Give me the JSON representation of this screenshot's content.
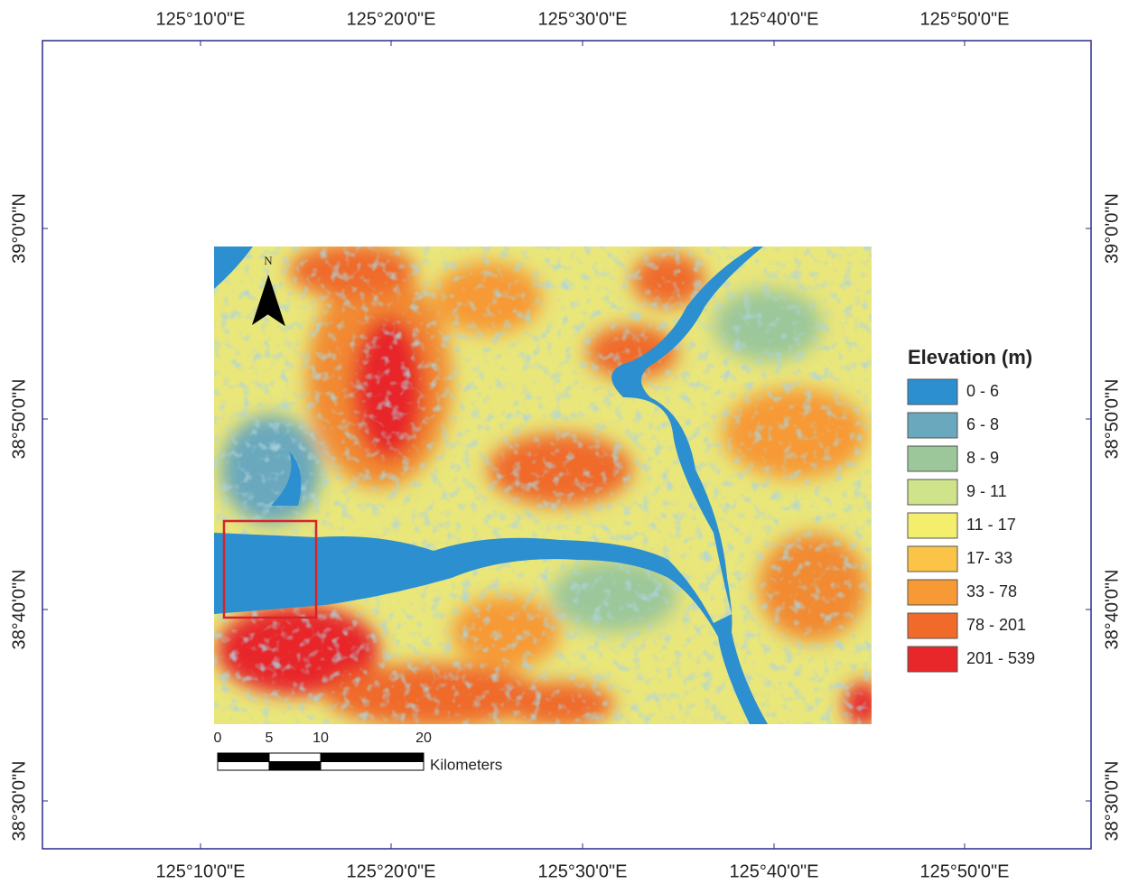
{
  "grid": {
    "top_labels": [
      "125°10'0\"E",
      "125°20'0\"E",
      "125°30'0\"E",
      "125°40'0\"E",
      "125°50'0\"E"
    ],
    "bottom_labels": [
      "125°10'0\"E",
      "125°20'0\"E",
      "125°30'0\"E",
      "125°40'0\"E",
      "125°50'0\"E"
    ],
    "left_labels": [
      "39°0'0\"N",
      "38°50'0\"N",
      "38°40'0\"N",
      "38°30'0\"N"
    ],
    "right_labels": [
      "39°0'0\"N",
      "38°50'0\"N",
      "38°40'0\"N",
      "38°30'0\"N"
    ]
  },
  "north_arrow": {
    "label": "N"
  },
  "legend": {
    "title": "Elevation (m)",
    "items": [
      {
        "label": "0 - 6",
        "color": "#2b8fd0"
      },
      {
        "label": "6 - 8",
        "color": "#6aa8bd"
      },
      {
        "label": "8 - 9",
        "color": "#9cc79a"
      },
      {
        "label": "9 - 11",
        "color": "#cfe38a"
      },
      {
        "label": "11 - 17",
        "color": "#f3ee6c"
      },
      {
        "label": "17- 33",
        "color": "#fbc447"
      },
      {
        "label": "33 - 78",
        "color": "#f79a35"
      },
      {
        "label": "78 - 201",
        "color": "#f06a2a"
      },
      {
        "label": "201 - 539",
        "color": "#e8272a"
      }
    ]
  },
  "scale_bar": {
    "ticks": [
      0,
      5,
      10,
      20
    ],
    "unit": "Kilometers"
  }
}
